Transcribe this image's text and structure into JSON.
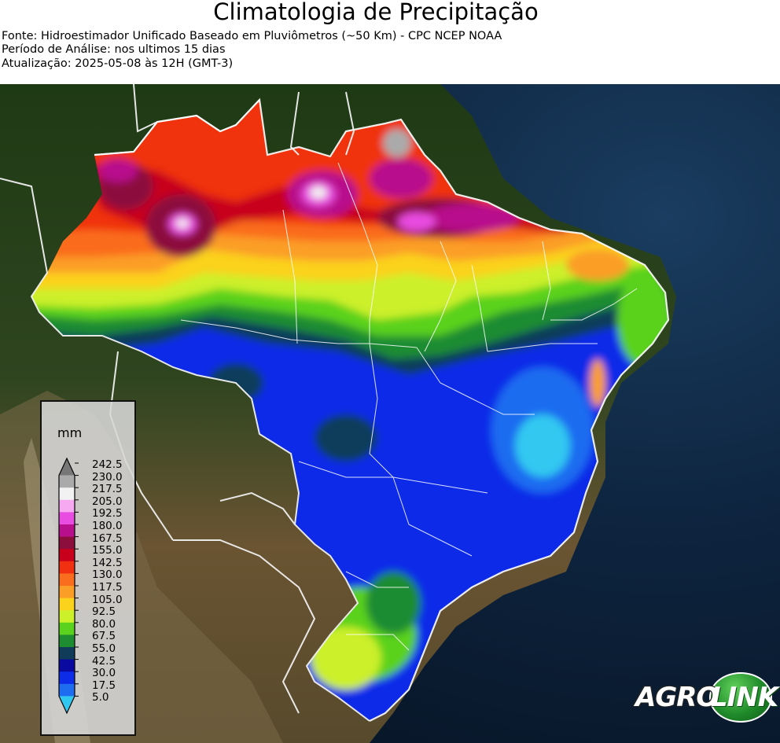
{
  "header": {
    "title": "Climatologia de Precipitação",
    "source": "Fonte: Hidroestimador Unificado Baseado em Pluviômetros (~50 Km) - CPC NCEP NOAA",
    "period": "Período de Análise: nos ultimos 15 dias",
    "updated": "Atualização: 2025-05-08 às 12H (GMT-3)"
  },
  "legend": {
    "unit": "mm",
    "levels": [
      {
        "label": "242.5",
        "color": "#777777"
      },
      {
        "label": "230.0",
        "color": "#aaaaaa"
      },
      {
        "label": "217.5",
        "color": "#f2f2f2"
      },
      {
        "label": "205.0",
        "color": "#f6a8f0"
      },
      {
        "label": "192.5",
        "color": "#e84ce0"
      },
      {
        "label": "180.0",
        "color": "#b8108c"
      },
      {
        "label": "167.5",
        "color": "#8c0e3c"
      },
      {
        "label": "155.0",
        "color": "#c8001c"
      },
      {
        "label": "142.5",
        "color": "#f03010"
      },
      {
        "label": "130.0",
        "color": "#fa6c1e"
      },
      {
        "label": "117.5",
        "color": "#fb9e28"
      },
      {
        "label": "105.0",
        "color": "#fbd21c"
      },
      {
        "label": "92.5",
        "color": "#ccf02a"
      },
      {
        "label": "80.0",
        "color": "#5ad21e"
      },
      {
        "label": "67.5",
        "color": "#1e8c30"
      },
      {
        "label": "55.0",
        "color": "#103c5a"
      },
      {
        "label": "42.5",
        "color": "#0a0aa0"
      },
      {
        "label": "30.0",
        "color": "#0c2ce8"
      },
      {
        "label": "17.5",
        "color": "#1e6cf0"
      },
      {
        "label": "5.0",
        "color": "#30c8f0"
      }
    ]
  },
  "logo": {
    "part1": "AGRO",
    "part2": "LINK"
  }
}
